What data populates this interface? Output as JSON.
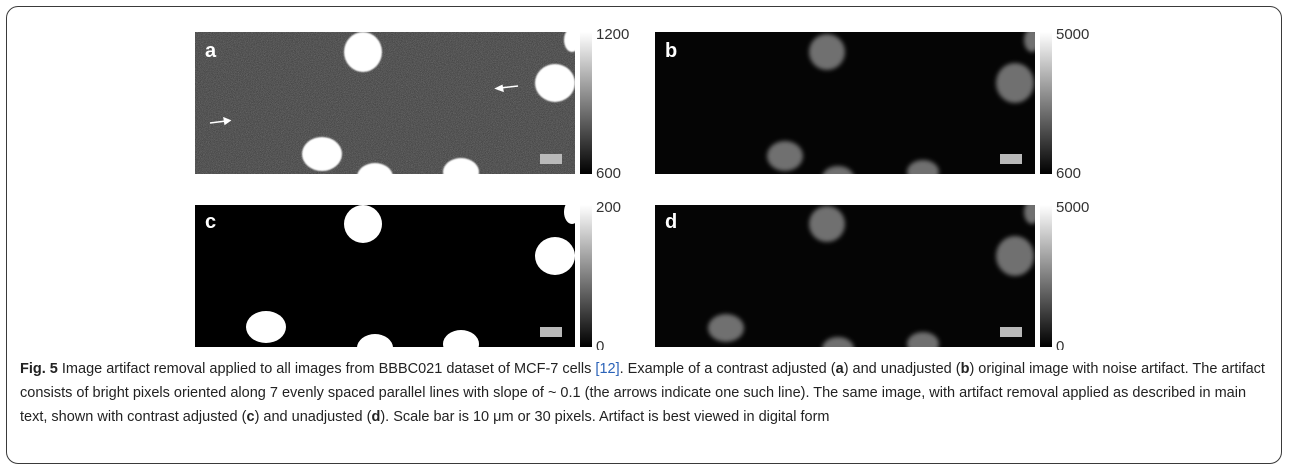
{
  "panels": [
    {
      "id": "a",
      "label": "a",
      "colorbar_max": "1200",
      "colorbar_min": "600",
      "style": "contrast-adjusted",
      "arrows": true
    },
    {
      "id": "b",
      "label": "b",
      "colorbar_max": "5000",
      "colorbar_min": "600",
      "style": "unadjusted",
      "arrows": false
    },
    {
      "id": "c",
      "label": "c",
      "colorbar_max": "200",
      "colorbar_min": "0",
      "style": "contrast-adjusted",
      "arrows": false
    },
    {
      "id": "d",
      "label": "d",
      "colorbar_max": "5000",
      "colorbar_min": "0",
      "style": "unadjusted",
      "arrows": false
    }
  ],
  "caption": {
    "fig_label": "Fig. 5",
    "t1": " Image artifact removal applied to all images from BBBC021 dataset of MCF-7 cells ",
    "cite": "[12]",
    "t2": ". Example of a contrast adjusted (",
    "a": "a",
    "t3": ") and unadjusted (",
    "b": "b",
    "t4": ") original image with noise artifact. The artifact consists of bright pixels oriented along 7 evenly spaced parallel lines with slope of ~ 0.1 (the arrows indicate one such line). The same image, with artifact removal applied as described in main text, shown with contrast adjusted (",
    "c": "c",
    "t5": ") and unadjusted (",
    "d": "d",
    "t6": "). Scale bar is 10 μm or 30 pixels. Artifact is best viewed in digital form"
  },
  "colors": {
    "frame": "#3a3a3a",
    "cite": "#2a62b8"
  }
}
